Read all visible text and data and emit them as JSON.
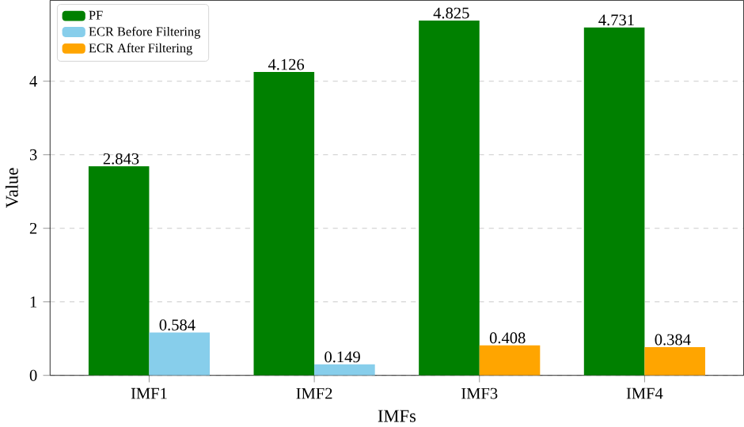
{
  "chart_data": {
    "type": "bar",
    "xlabel": "IMFs",
    "ylabel": "Value",
    "categories": [
      "IMF1",
      "IMF2",
      "IMF3",
      "IMF4"
    ],
    "series": [
      {
        "name": "PF",
        "color": "#008000",
        "values": [
          2.843,
          4.126,
          4.825,
          4.731
        ],
        "value_labels": [
          "2.843",
          "4.126",
          "4.825",
          "4.731"
        ]
      },
      {
        "name": "ECR Before Filtering",
        "color": "#87ceeb",
        "values": [
          0.584,
          0.149,
          null,
          null
        ],
        "value_labels": [
          "0.584",
          "0.149",
          null,
          null
        ]
      },
      {
        "name": "ECR After Filtering",
        "color": "#ffa500",
        "values": [
          null,
          null,
          0.408,
          0.384
        ],
        "value_labels": [
          null,
          null,
          "0.408",
          "0.384"
        ]
      }
    ],
    "ylim": [
      0,
      5.1
    ],
    "yticks": [
      0,
      1,
      2,
      3,
      4
    ],
    "grid": "y",
    "legend": "top left"
  }
}
